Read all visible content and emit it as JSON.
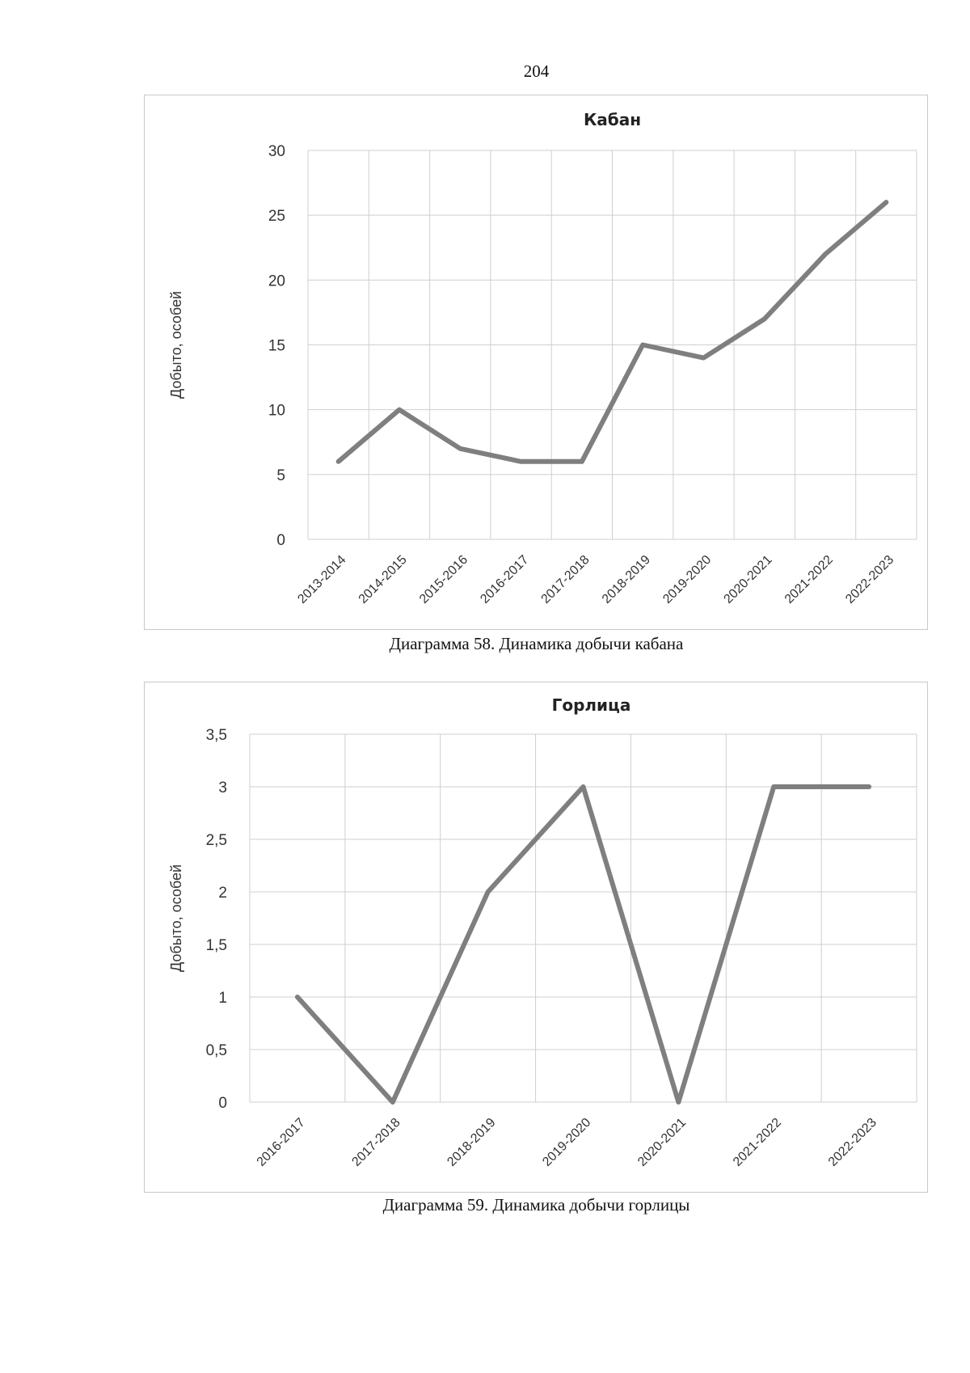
{
  "page": {
    "number": "204"
  },
  "chart_data": [
    {
      "type": "line",
      "title": "Кабан",
      "xlabel": "",
      "ylabel": "Добыто, особей",
      "categories": [
        "2013-2014",
        "2014-2015",
        "2015-2016",
        "2016-2017",
        "2017-2018",
        "2018-2019",
        "2019-2020",
        "2020-2021",
        "2021-2022",
        "2022-2023"
      ],
      "series": [
        {
          "name": "Кабан",
          "values": [
            6,
            10,
            7,
            6,
            6,
            15,
            14,
            17,
            22,
            26
          ]
        }
      ],
      "ylim": [
        0,
        30
      ],
      "yticks": [
        0,
        5,
        10,
        15,
        20,
        25,
        30
      ],
      "ytick_labels": [
        "0",
        "5",
        "10",
        "15",
        "20",
        "25",
        "30"
      ],
      "grid": true,
      "caption": "Диаграмма 58. Динамика добычи кабана"
    },
    {
      "type": "line",
      "title": "Горлица",
      "xlabel": "",
      "ylabel": "Добыто, особей",
      "categories": [
        "2016-2017",
        "2017-2018",
        "2018-2019",
        "2019-2020",
        "2020-2021",
        "2021-2022",
        "2022-2023"
      ],
      "series": [
        {
          "name": "Горлица",
          "values": [
            1,
            0,
            2,
            3,
            0,
            3,
            3
          ]
        }
      ],
      "ylim": [
        0,
        3.5
      ],
      "yticks": [
        0,
        0.5,
        1,
        1.5,
        2,
        2.5,
        3,
        3.5
      ],
      "ytick_labels": [
        "0",
        "0,5",
        "1",
        "1,5",
        "2",
        "2,5",
        "3",
        "3,5"
      ],
      "grid": true,
      "caption": "Диаграмма 59. Динамика добычи горлицы"
    }
  ]
}
